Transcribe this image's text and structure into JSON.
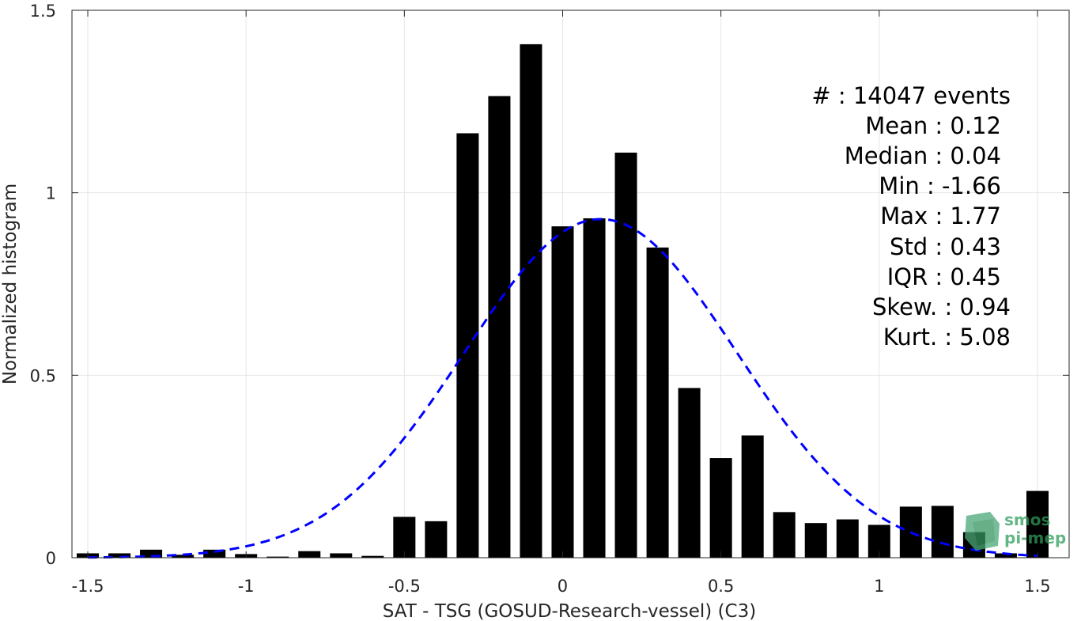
{
  "chart_data": {
    "type": "bar",
    "xlabel": "SAT - TSG (GOSUD-Research-vessel) (C3)",
    "ylabel": "Normalized histogram",
    "xlim": [
      -1.55,
      1.6
    ],
    "ylim": [
      0,
      1.5
    ],
    "grid": true,
    "x_ticks": [
      "-1.5",
      "-1",
      "-0.5",
      "0",
      "0.5",
      "1",
      "1.5"
    ],
    "x_tick_values": [
      -1.5,
      -1,
      -0.5,
      0,
      0.5,
      1,
      1.5
    ],
    "y_ticks": [
      "0",
      "0.5",
      "1",
      "1.5"
    ],
    "y_tick_values": [
      0,
      0.5,
      1,
      1.5
    ],
    "bin_width": 0.1,
    "x": [
      -1.5,
      -1.4,
      -1.3,
      -1.2,
      -1.1,
      -1.0,
      -0.9,
      -0.8,
      -0.7,
      -0.6,
      -0.5,
      -0.4,
      -0.3,
      -0.2,
      -0.1,
      0.0,
      0.1,
      0.2,
      0.3,
      0.4,
      0.5,
      0.6,
      0.7,
      0.8,
      0.9,
      1.0,
      1.1,
      1.2,
      1.3,
      1.4,
      1.5
    ],
    "values": [
      0.012,
      0.012,
      0.022,
      0.008,
      0.022,
      0.01,
      0.003,
      0.018,
      0.012,
      0.005,
      0.112,
      0.1,
      1.163,
      1.265,
      1.407,
      0.908,
      0.93,
      1.11,
      0.85,
      0.465,
      0.273,
      0.335,
      0.125,
      0.095,
      0.105,
      0.09,
      0.14,
      0.142,
      0.07,
      0.012,
      0.183
    ],
    "bar_color": "#000000",
    "fit": {
      "type": "normal",
      "mean": 0.12,
      "std": 0.43,
      "color": "#0000ff",
      "style": "dashed"
    }
  },
  "stats": [
    "#  : 14047 events",
    "Mean : 0.12",
    "Median : 0.04",
    "Min : -1.66",
    "Max : 1.77",
    "Std : 0.43",
    "IQR : 0.45",
    "Skew. : 0.94",
    "Kurt. : 5.08"
  ],
  "logo": {
    "line1": "smos",
    "line2": "pi-mep",
    "color": "#2e9e5a"
  }
}
